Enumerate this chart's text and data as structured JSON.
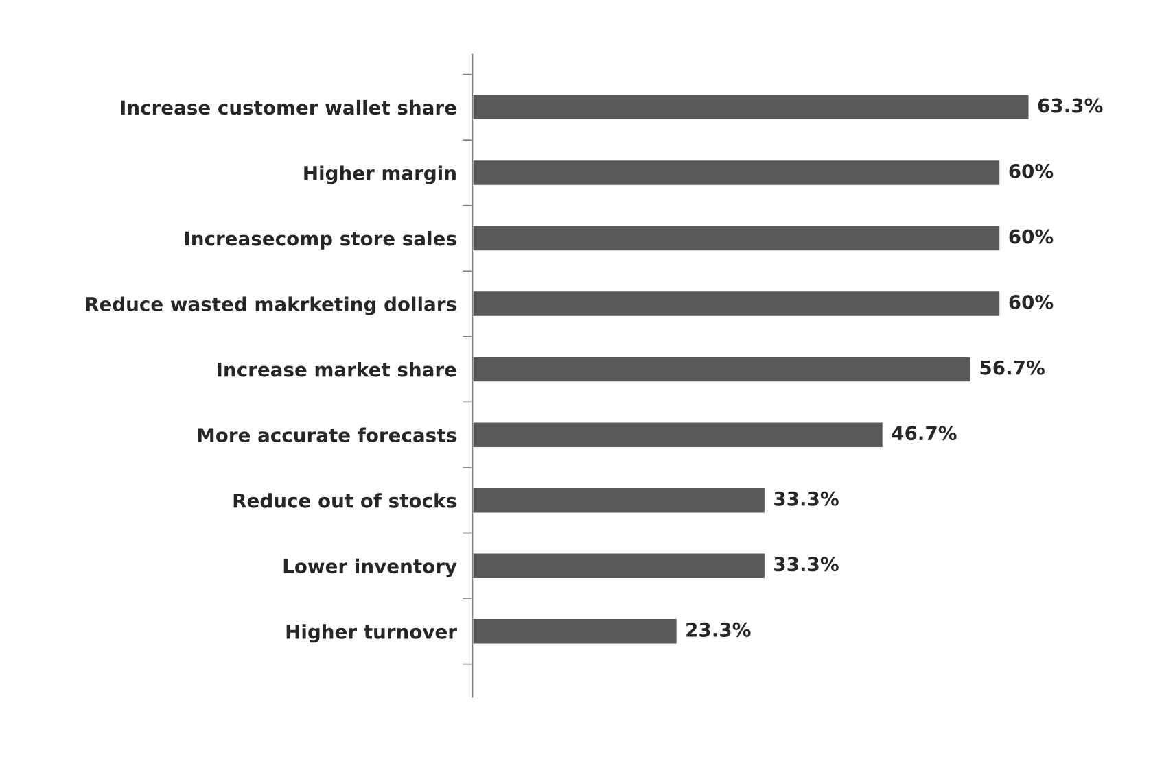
{
  "chart_data": {
    "type": "bar",
    "orientation": "horizontal",
    "categories": [
      "Increase customer wallet share",
      "Higher margin",
      "Increasecomp store sales",
      "Reduce wasted makrketing dollars",
      "Increase market share",
      "More accurate forecasts",
      "Reduce out of stocks",
      "Lower inventory",
      "Higher turnover"
    ],
    "values": [
      63.3,
      60,
      60,
      60,
      56.7,
      46.7,
      33.3,
      33.3,
      23.3
    ],
    "value_labels": [
      "63.3%",
      "60%",
      "60%",
      "60%",
      "56.7%",
      "46.7%",
      "33.3%",
      "33.3%",
      "23.3%"
    ],
    "color": "#595959",
    "grid": false,
    "legend": false
  }
}
